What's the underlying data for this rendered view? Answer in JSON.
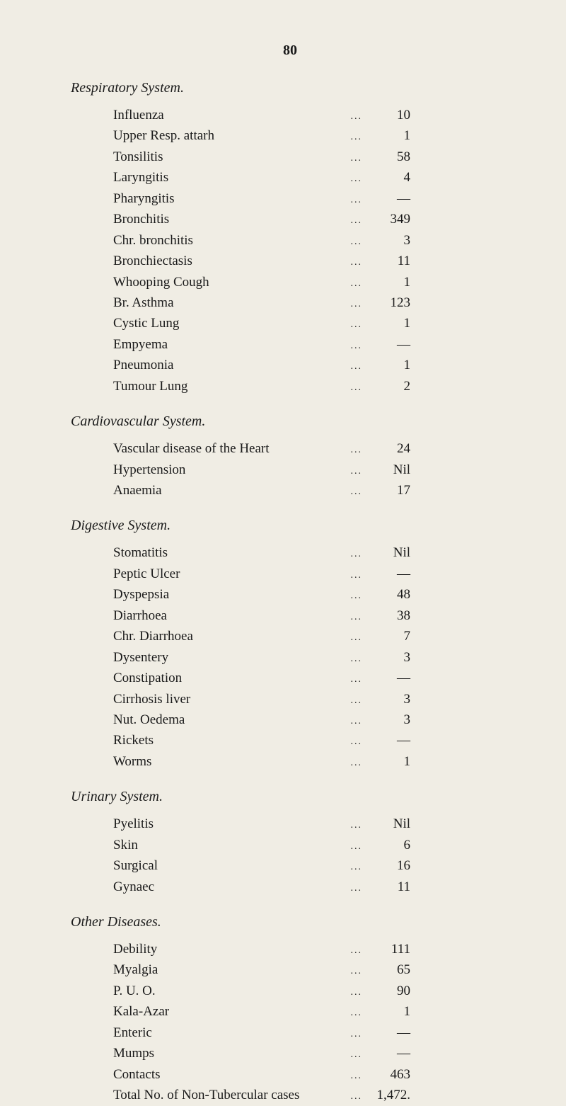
{
  "pageNumber": "80",
  "sections": [
    {
      "title": "Respiratory System.",
      "items": [
        {
          "label": "Influenza",
          "value": "10"
        },
        {
          "label": "Upper Resp. attarh",
          "value": "1"
        },
        {
          "label": "Tonsilitis",
          "value": "58"
        },
        {
          "label": "Laryngitis",
          "value": "4"
        },
        {
          "label": "Pharyngitis",
          "value": "—"
        },
        {
          "label": "Bronchitis",
          "value": "349"
        },
        {
          "label": "Chr. bronchitis",
          "value": "3"
        },
        {
          "label": "Bronchiectasis",
          "value": "11"
        },
        {
          "label": "Whooping Cough",
          "value": "1"
        },
        {
          "label": "Br. Asthma",
          "value": "123"
        },
        {
          "label": "Cystic Lung",
          "value": "1"
        },
        {
          "label": "Empyema",
          "value": "—"
        },
        {
          "label": "Pneumonia",
          "value": "1"
        },
        {
          "label": "Tumour Lung",
          "value": "2"
        }
      ]
    },
    {
      "title": "Cardiovascular System.",
      "items": [
        {
          "label": "Vascular disease of the Heart",
          "value": "24"
        },
        {
          "label": "Hypertension",
          "value": "Nil"
        },
        {
          "label": "Anaemia",
          "value": "17"
        }
      ]
    },
    {
      "title": "Digestive System.",
      "items": [
        {
          "label": "Stomatitis",
          "value": "Nil"
        },
        {
          "label": "Peptic Ulcer",
          "value": "—"
        },
        {
          "label": "Dyspepsia",
          "value": "48"
        },
        {
          "label": "Diarrhoea",
          "value": "38"
        },
        {
          "label": "Chr. Diarrhoea",
          "value": "7"
        },
        {
          "label": "Dysentery",
          "value": "3"
        },
        {
          "label": "Constipation",
          "value": "—"
        },
        {
          "label": "Cirrhosis liver",
          "value": "3"
        },
        {
          "label": "Nut. Oedema",
          "value": "3"
        },
        {
          "label": "Rickets",
          "value": "—"
        },
        {
          "label": "Worms",
          "value": "1"
        }
      ]
    },
    {
      "title": "Urinary System.",
      "items": [
        {
          "label": "Pyelitis",
          "value": "Nil"
        },
        {
          "label": "Skin",
          "value": "6"
        },
        {
          "label": "Surgical",
          "value": "16"
        },
        {
          "label": "Gynaec",
          "value": "11"
        }
      ]
    },
    {
      "title": "Other Diseases.",
      "items": [
        {
          "label": "Debility",
          "value": "111"
        },
        {
          "label": "Myalgia",
          "value": "65"
        },
        {
          "label": "P. U. O.",
          "value": "90"
        },
        {
          "label": "Kala-Azar",
          "value": "1"
        },
        {
          "label": "Enteric",
          "value": "—"
        },
        {
          "label": "Mumps",
          "value": "—"
        },
        {
          "label": "Contacts",
          "value": "463"
        },
        {
          "label": "Total No. of Non-Tubercular cases",
          "value": "1,472."
        }
      ]
    }
  ],
  "leaderDots": "..."
}
